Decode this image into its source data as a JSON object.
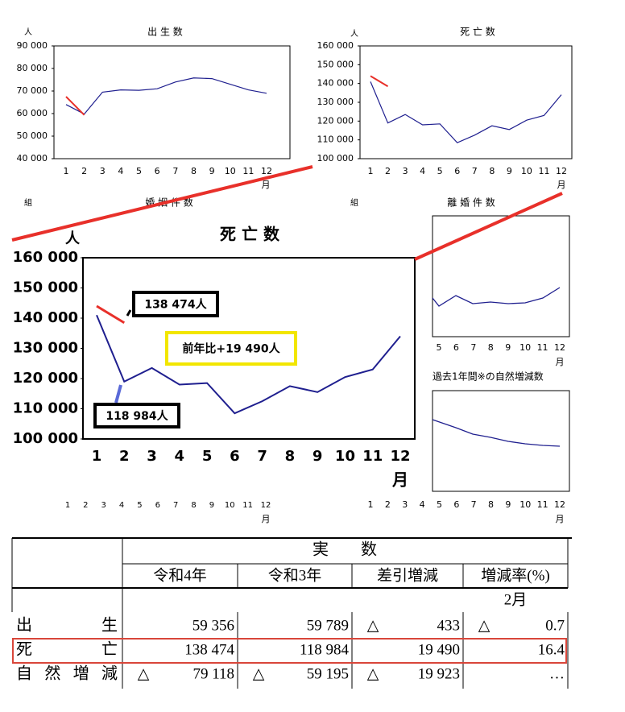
{
  "chart_data": [
    {
      "type": "line",
      "title": "出 生 数",
      "y_label": "人",
      "x_label": "月",
      "categories": [
        1,
        2,
        3,
        4,
        5,
        6,
        7,
        8,
        9,
        10,
        11,
        12
      ],
      "ylim": [
        40000,
        90000
      ],
      "yticks": [
        {
          "value": 40000,
          "label": "40 000"
        },
        {
          "value": 50000,
          "label": "50 000"
        },
        {
          "value": 60000,
          "label": "60 000"
        },
        {
          "value": 70000,
          "label": "70 000"
        },
        {
          "value": 80000,
          "label": "80 000"
        },
        {
          "value": 90000,
          "label": "90 000"
        }
      ],
      "series": [
        {
          "color": "#1f1f8f",
          "values": [
            64000,
            59789,
            69500,
            70500,
            70300,
            71000,
            74000,
            75800,
            75500,
            73000,
            70500,
            69000
          ]
        },
        {
          "color": "#e8302a",
          "values": [
            67500,
            59356,
            null,
            null,
            null,
            null,
            null,
            null,
            null,
            null,
            null,
            null
          ]
        }
      ]
    },
    {
      "type": "line",
      "title": "死 亡 数",
      "y_label": "人",
      "x_label": "月",
      "categories": [
        1,
        2,
        3,
        4,
        5,
        6,
        7,
        8,
        9,
        10,
        11,
        12
      ],
      "ylim": [
        100000,
        160000
      ],
      "yticks": [
        {
          "value": 100000,
          "label": "100 000"
        },
        {
          "value": 110000,
          "label": "110 000"
        },
        {
          "value": 120000,
          "label": "120 000"
        },
        {
          "value": 130000,
          "label": "130 000"
        },
        {
          "value": 140000,
          "label": "140 000"
        },
        {
          "value": 150000,
          "label": "150 000"
        },
        {
          "value": 160000,
          "label": "160 000"
        }
      ],
      "series": [
        {
          "color": "#1f1f8f",
          "values": [
            141000,
            118984,
            123500,
            118000,
            118500,
            108500,
            112500,
            117500,
            115500,
            120500,
            123000,
            134000
          ]
        },
        {
          "color": "#e8302a",
          "values": [
            144000,
            138474,
            null,
            null,
            null,
            null,
            null,
            null,
            null,
            null,
            null,
            null
          ]
        }
      ]
    },
    {
      "type": "line",
      "title": "婚 姻 件 数",
      "y_label": "組",
      "x_label": "月",
      "categories": [
        1,
        2,
        3,
        4,
        5,
        6,
        7,
        8,
        9,
        10,
        11,
        12
      ]
    },
    {
      "type": "line",
      "title": "離 婚 件 数",
      "y_label": "組",
      "x_label": "月",
      "categories": [
        5,
        6,
        7,
        8,
        9,
        10,
        11,
        12
      ]
    },
    {
      "type": "line",
      "title": "過去1年間※の自然増減数",
      "x_label": "月",
      "categories": [
        1,
        2,
        3,
        4,
        5,
        6,
        7,
        8,
        9,
        10,
        11,
        12
      ]
    },
    {
      "type": "line",
      "title": "死 亡 数",
      "y_label": "人",
      "x_label": "月",
      "categories": [
        1,
        2,
        3,
        4,
        5,
        6,
        7,
        8,
        9,
        10,
        11,
        12
      ],
      "ylim": [
        100000,
        160000
      ],
      "yticks": [
        {
          "value": 100000,
          "label": "100 000"
        },
        {
          "value": 110000,
          "label": "110 000"
        },
        {
          "value": 120000,
          "label": "120 000"
        },
        {
          "value": 130000,
          "label": "130 000"
        },
        {
          "value": 140000,
          "label": "140 000"
        },
        {
          "value": 150000,
          "label": "150 000"
        },
        {
          "value": 160000,
          "label": "160 000"
        }
      ],
      "series": [
        {
          "color": "#1f1f8f",
          "values": [
            141000,
            118984,
            123500,
            118000,
            118500,
            108500,
            112500,
            117500,
            115500,
            120500,
            123000,
            134000
          ]
        },
        {
          "color": "#e8302a",
          "values": [
            144000,
            138474,
            null,
            null,
            null,
            null,
            null,
            null,
            null,
            null,
            null,
            null
          ]
        }
      ],
      "annotations": [
        "138 474人",
        "前年比+19 490人",
        "118 984人"
      ]
    }
  ],
  "table": {
    "header": "実　　数",
    "columns": [
      "令和4年",
      "令和3年",
      "差引増減",
      "増減率(%)"
    ],
    "period": "2月",
    "rows": [
      {
        "label": "出生",
        "cells": [
          {
            "text": "59 356"
          },
          {
            "text": "59 789"
          },
          {
            "mark": "△",
            "text": "433"
          },
          {
            "mark": "△",
            "text": "0.7"
          }
        ]
      },
      {
        "label": "死亡",
        "cells": [
          {
            "text": "138 474"
          },
          {
            "text": "118 984"
          },
          {
            "text": "19 490"
          },
          {
            "text": "16.4"
          }
        ]
      },
      {
        "label": "自然増減",
        "cells": [
          {
            "mark": "△",
            "text": "79 118"
          },
          {
            "mark": "△",
            "text": "59 195"
          },
          {
            "mark": "△",
            "text": "19 923"
          },
          {
            "text": "…"
          }
        ]
      }
    ]
  }
}
